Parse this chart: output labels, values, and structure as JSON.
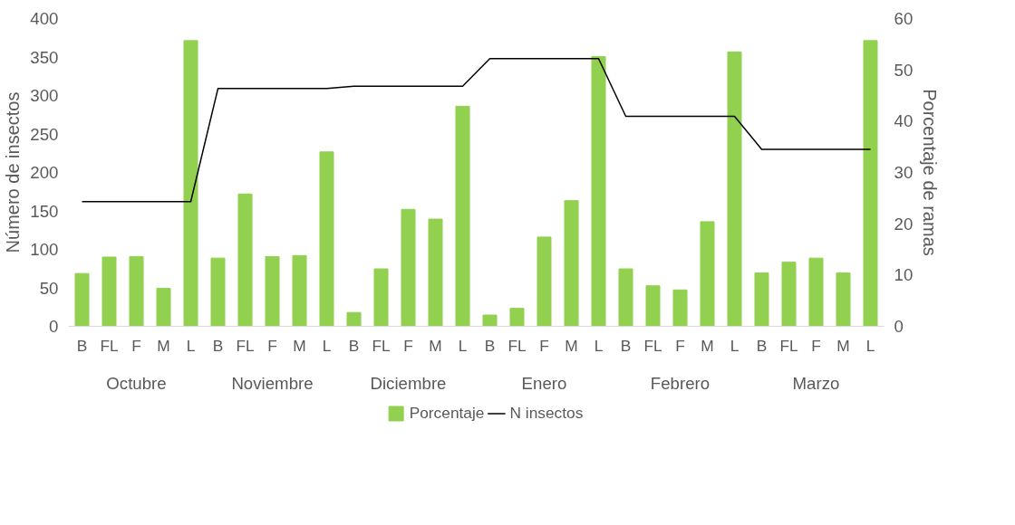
{
  "chart_data": {
    "type": "bar",
    "ylabel": "Número de insectos",
    "y2label": "Porcentaje de ramas",
    "categories": [
      "B",
      "FL",
      "F",
      "M",
      "L",
      "B",
      "FL",
      "F",
      "M",
      "L",
      "B",
      "FL",
      "F",
      "M",
      "L",
      "B",
      "FL",
      "F",
      "M",
      "L",
      "B",
      "FL",
      "F",
      "M",
      "L",
      "B",
      "FL",
      "F",
      "M",
      "L"
    ],
    "annotations": [
      "Octubre",
      "Noviembre",
      "Diciembre",
      "Enero",
      "Febrero",
      "Marzo"
    ],
    "series": [
      {
        "name": "Porcentaje",
        "axis": "y2",
        "color": "#92d050",
        "values": [
          10.3,
          13.5,
          13.6,
          7.4,
          55.7,
          13.3,
          25.8,
          13.6,
          13.8,
          34.0,
          2.7,
          11.2,
          22.8,
          20.9,
          42.9,
          2.2,
          3.5,
          17.4,
          24.5,
          52.6,
          11.2,
          7.9,
          7.1,
          20.4,
          53.5,
          10.4,
          12.5,
          13.3,
          10.4,
          55.7
        ]
      },
      {
        "name": "N insectos",
        "type": "line",
        "axis": "y",
        "color": "#000000",
        "values": [
          162,
          162,
          162,
          162,
          162,
          309,
          309,
          309,
          309,
          309,
          312,
          312,
          312,
          312,
          312,
          348,
          348,
          348,
          348,
          348,
          273,
          273,
          273,
          273,
          273,
          230,
          230,
          230,
          230,
          230
        ]
      }
    ],
    "ylim": [
      0,
      400
    ],
    "yticks": [
      0,
      50,
      100,
      150,
      200,
      250,
      300,
      350,
      400
    ],
    "y2lim": [
      0,
      60
    ],
    "y2ticks": [
      0,
      10,
      20,
      30,
      40,
      50,
      60
    ],
    "grid": false,
    "legend": "bottom",
    "marker": "none",
    "line_style": "solid"
  }
}
